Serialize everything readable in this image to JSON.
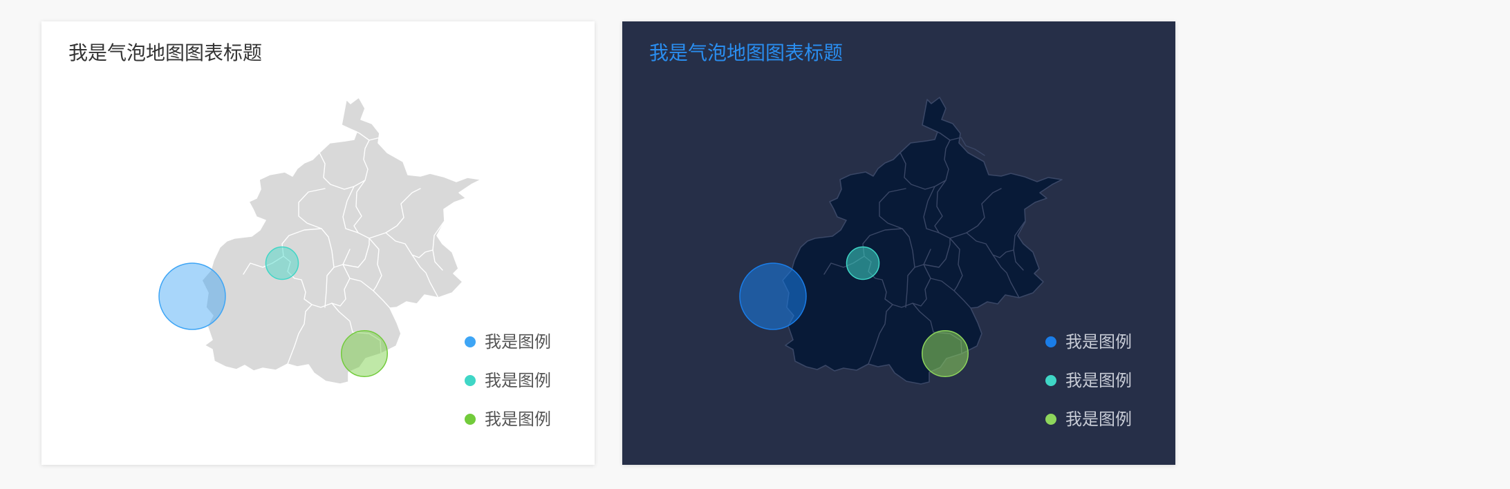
{
  "chart_data": [
    {
      "type": "bubble-map",
      "theme": "light",
      "title": "我是气泡地图图表标题",
      "map_fill": "#d9d9d9",
      "map_stroke": "#ffffff",
      "series": [
        {
          "name": "我是图例",
          "color": "#3ea5f5",
          "value": 100,
          "region": "west"
        },
        {
          "name": "我是图例",
          "color": "#3fd6c6",
          "value": 24,
          "region": "center"
        },
        {
          "name": "我是图例",
          "color": "#72cb3b",
          "value": 48,
          "region": "southeast"
        }
      ],
      "legend": {
        "position": "bottom-right"
      }
    },
    {
      "type": "bubble-map",
      "theme": "dark",
      "title": "我是气泡地图图表标题",
      "map_fill": "#081a37",
      "map_stroke": "#3a4766",
      "series": [
        {
          "name": "我是图例",
          "color": "#1a7de8",
          "value": 100,
          "region": "west"
        },
        {
          "name": "我是图例",
          "color": "#3fd6c6",
          "value": 24,
          "region": "center"
        },
        {
          "name": "我是图例",
          "color": "#8ed65c",
          "value": 48,
          "region": "southeast"
        }
      ],
      "legend": {
        "position": "bottom-right"
      }
    }
  ]
}
